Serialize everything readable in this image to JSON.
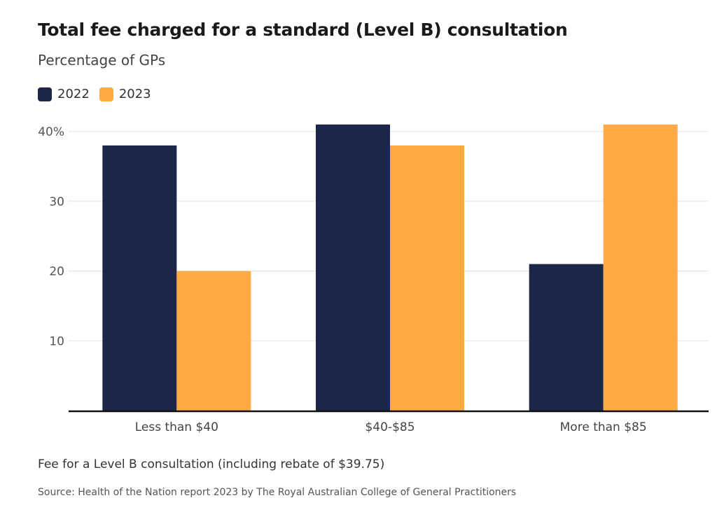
{
  "chart_data": {
    "type": "bar",
    "title": "Total fee charged for a standard (Level B) consultation",
    "subtitle": "Percentage of GPs",
    "xlabel": "Fee for a Level B consultation (including rebate of $39.75)",
    "ylabel": "",
    "categories": [
      "Less than $40",
      "$40-$85",
      "More than $85"
    ],
    "series": [
      {
        "name": "2022",
        "values": [
          38,
          41,
          21
        ],
        "color": "#1b2648"
      },
      {
        "name": "2023",
        "values": [
          20,
          38,
          41
        ],
        "color": "#ffab45"
      }
    ],
    "ylim": [
      0,
      40
    ],
    "yticks": [
      10,
      20,
      30,
      40
    ],
    "ytick_labels": [
      "10",
      "20",
      "30",
      "40%"
    ],
    "grid": true,
    "legend_position": "top-left"
  },
  "source": "Source: Health of the Nation report 2023 by The Royal Australian College of General Practitioners"
}
